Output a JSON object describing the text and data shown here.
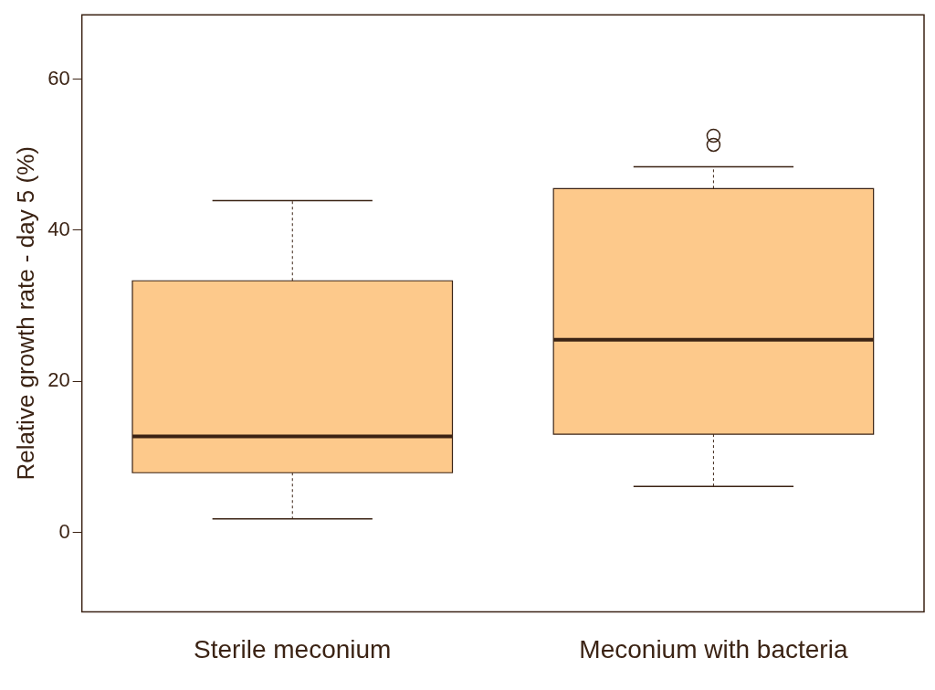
{
  "chart_data": {
    "type": "box",
    "ylabel": "Relative growth rate - day 5 (%)",
    "categories": [
      "Sterile meconium",
      "Meconium with bacteria"
    ],
    "color": "#fdc98b",
    "boxes": [
      {
        "low": 1.8,
        "q1": 7.9,
        "median": 12.7,
        "q3": 33.3,
        "high": 43.9
      },
      {
        "low": 6.1,
        "q1": 13.0,
        "median": 25.5,
        "q3": 45.5,
        "high": 48.4,
        "outliers": [
          51.3,
          52.5
        ]
      }
    ],
    "ylim": [
      -10.5,
      68.5
    ],
    "yticks": [
      0,
      20,
      40,
      60
    ]
  }
}
